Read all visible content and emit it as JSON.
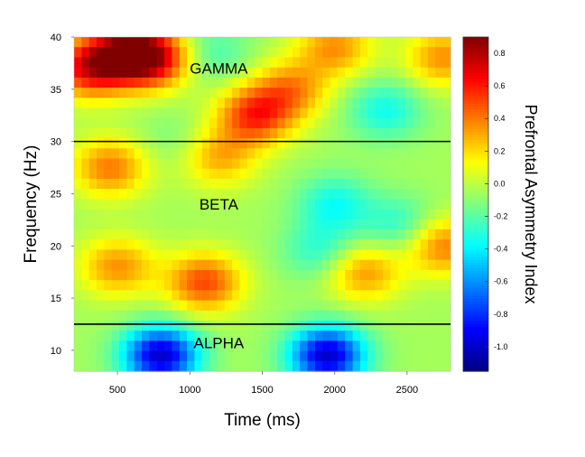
{
  "chart_data": {
    "type": "heatmap",
    "title": "",
    "xlabel": "Time (ms)",
    "ylabel": "Frequency (Hz)",
    "colorbar_label": "Prefrontal Asymmetry Index",
    "xlim": [
      200,
      2800
    ],
    "ylim": [
      8,
      40
    ],
    "x_ticks": [
      "500",
      "1000",
      "1500",
      "2000",
      "2500"
    ],
    "y_ticks": [
      "10",
      "15",
      "20",
      "25",
      "30",
      "35",
      "40"
    ],
    "colorbar_range": [
      -1.15,
      0.9
    ],
    "colorbar_ticks": [
      "0.8",
      "0.6",
      "0.4",
      "0.2",
      "0.0",
      "-0.2",
      "-0.4",
      "-0.6",
      "-0.8",
      "-1.0"
    ],
    "colormap": "jet",
    "band_boundaries_hz": [
      30,
      12.5
    ],
    "band_labels": [
      {
        "text": "GAMMA",
        "x": 1200,
        "y": 36.5
      },
      {
        "text": "BETA",
        "x": 1200,
        "y": 23.5
      },
      {
        "text": "ALPHA",
        "x": 1200,
        "y": 10.2
      }
    ],
    "hotspots": [
      {
        "x": 300,
        "y": 37,
        "value": 0.6
      },
      {
        "x": 550,
        "y": 38.5,
        "value": 0.65
      },
      {
        "x": 750,
        "y": 38,
        "value": 0.65
      },
      {
        "x": 1450,
        "y": 32.5,
        "value": 0.55
      },
      {
        "x": 1700,
        "y": 35,
        "value": 0.35
      },
      {
        "x": 2000,
        "y": 39,
        "value": 0.35
      },
      {
        "x": 450,
        "y": 27.5,
        "value": 0.4
      },
      {
        "x": 1200,
        "y": 28.5,
        "value": 0.3
      },
      {
        "x": 500,
        "y": 18,
        "value": 0.35
      },
      {
        "x": 1100,
        "y": 16.5,
        "value": 0.5
      },
      {
        "x": 2200,
        "y": 17.5,
        "value": 0.35
      },
      {
        "x": 2750,
        "y": 20,
        "value": 0.4
      },
      {
        "x": 2750,
        "y": 38,
        "value": 0.35
      },
      {
        "x": 800,
        "y": 9.5,
        "value": -1.0
      },
      {
        "x": 1950,
        "y": 9.5,
        "value": -1.0
      },
      {
        "x": 1150,
        "y": 38.5,
        "value": -0.25
      },
      {
        "x": 2350,
        "y": 33,
        "value": -0.35
      },
      {
        "x": 2000,
        "y": 24,
        "value": -0.35
      },
      {
        "x": 1900,
        "y": 19.5,
        "value": -0.3
      },
      {
        "x": 2450,
        "y": 22,
        "value": -0.3
      },
      {
        "x": 900,
        "y": 30,
        "value": -0.15
      }
    ],
    "background_value": -0.05
  }
}
